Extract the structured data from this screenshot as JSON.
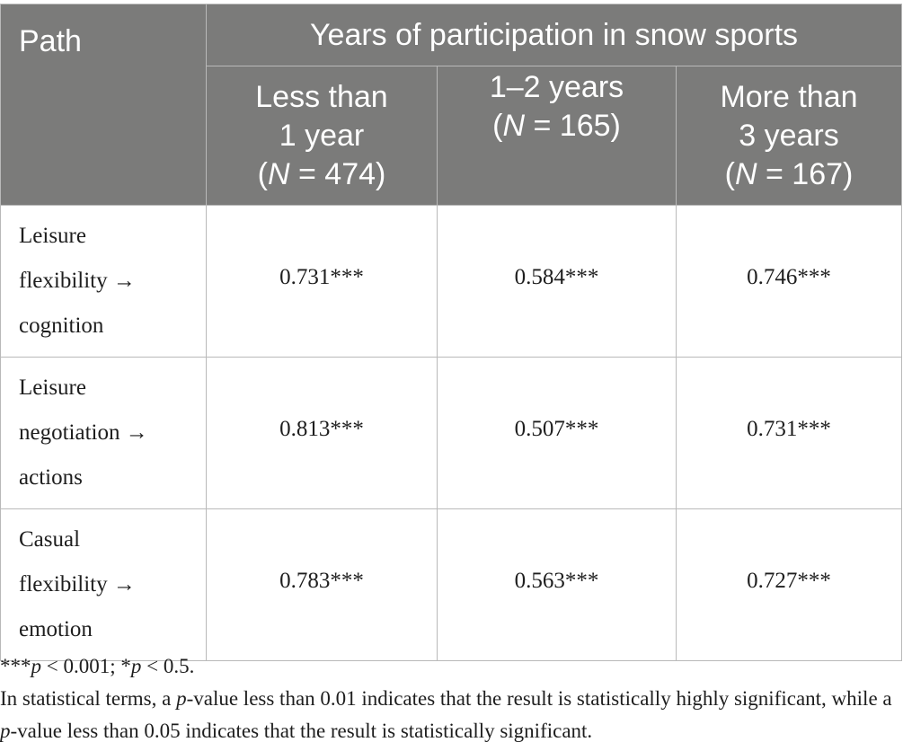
{
  "table": {
    "header": {
      "path_label": "Path",
      "group_label": "Years of participation in snow sports",
      "columns": [
        {
          "line1": "Less than",
          "line2": "1 year",
          "n_var": "N",
          "n_text": " = 474)"
        },
        {
          "line1": "1–2 years",
          "n_var": "N",
          "n_text": " = 165)"
        },
        {
          "line1": "More than",
          "line2": "3 years",
          "n_var": "N",
          "n_text": " = 167)"
        }
      ]
    },
    "rows": [
      {
        "path_lines": [
          "Leisure",
          "flexibility →",
          "cognition"
        ],
        "values": [
          "0.731***",
          "0.584***",
          "0.746***"
        ]
      },
      {
        "path_lines": [
          "Leisure",
          "negotiation →",
          "actions"
        ],
        "values": [
          "0.813***",
          "0.507***",
          "0.731***"
        ]
      },
      {
        "path_lines": [
          "Casual",
          "flexibility →",
          "emotion"
        ],
        "values": [
          "0.783***",
          "0.563***",
          "0.727***"
        ]
      }
    ]
  },
  "notes": {
    "significance": {
      "stars3": "***",
      "p": "p",
      "t1": " < 0.001; ",
      "star1": "*",
      "t2": " < 0.5."
    },
    "explanation": {
      "a": "In statistical terms, a ",
      "p": "p",
      "b": "-value less than 0.01 indicates that the result is statistically highly significant, while a ",
      "c": "-value less than 0.05 indicates that the result is statistically significant."
    }
  }
}
